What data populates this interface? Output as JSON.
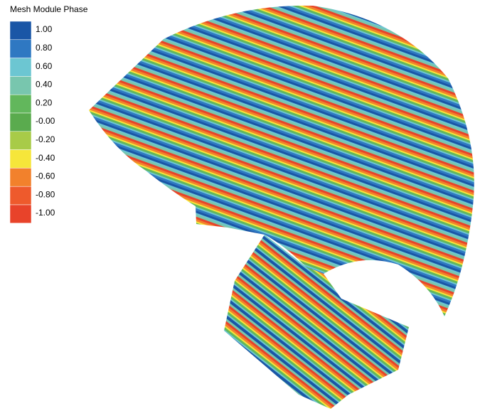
{
  "legend": {
    "title": "Mesh Module Phase",
    "entries": [
      {
        "label": "1.00",
        "color": "#1a56a6"
      },
      {
        "label": "0.80",
        "color": "#2f78c2"
      },
      {
        "label": "0.60",
        "color": "#6cc6d2"
      },
      {
        "label": "0.40",
        "color": "#78c6ae"
      },
      {
        "label": "0.20",
        "color": "#62b75c"
      },
      {
        "label": "-0.00",
        "color": "#5aab4e"
      },
      {
        "label": "-0.20",
        "color": "#a8cb48"
      },
      {
        "label": "-0.40",
        "color": "#f6e63a"
      },
      {
        "label": "-0.60",
        "color": "#f2812c"
      },
      {
        "label": "-0.80",
        "color": "#ee5a2c"
      },
      {
        "label": "-1.00",
        "color": "#e8432a"
      }
    ]
  }
}
